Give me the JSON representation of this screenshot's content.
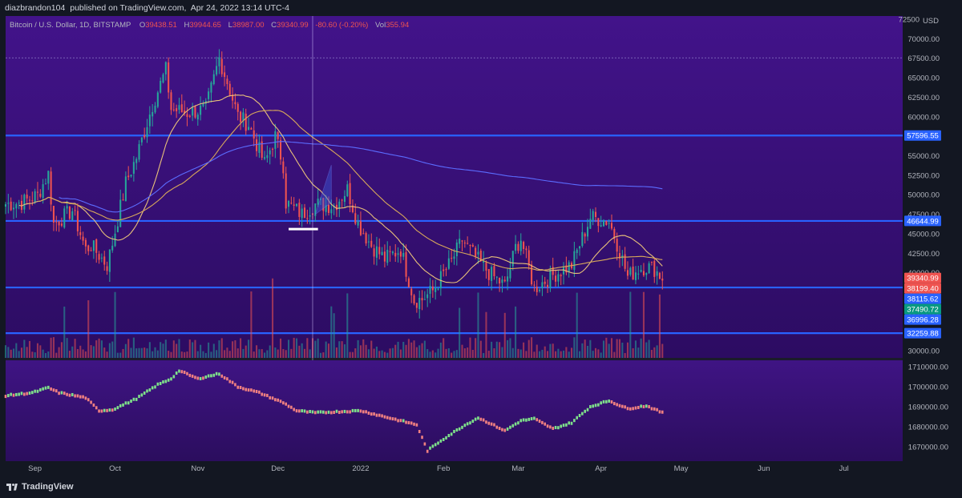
{
  "header": {
    "author": "diazbrandon104",
    "published_text": "published on TradingView.com,",
    "date": "Apr 24, 2022 13:14 UTC-4"
  },
  "symbol": {
    "name": "Bitcoin / U.S. Dollar, 1D, BITSTAMP",
    "open_label": "O",
    "open": "39438.51",
    "high_label": "H",
    "high": "39944.65",
    "low_label": "L",
    "low": "38987.00",
    "close_label": "C",
    "close": "39340.99",
    "change": "-80.60 (-0.20%)",
    "vol_label": "Vol",
    "vol": "355.94"
  },
  "currency": "USD",
  "footer": {
    "brand": "TradingView"
  },
  "colors": {
    "panel_bg": "#44178a",
    "panel_bg_dark": "#2b0d5e",
    "up": "#26a69a",
    "down": "#ef5350",
    "ma_fast": "#e8c07a",
    "ma_slow": "#2962ff",
    "hline": "#2962ff",
    "tag_blue": "#2962ff",
    "tag_red": "#ef5350",
    "tag_green": "#089981"
  },
  "chart_data": [
    {
      "type": "candlestick",
      "title": "Bitcoin / U.S. Dollar, 1D, BITSTAMP",
      "ylim": [
        29500,
        72500
      ],
      "y_ticks": [
        "70000.00",
        "67500.00",
        "65000.00",
        "62500.00",
        "60000.00",
        "57500.00",
        "55000.00",
        "52500.00",
        "50000.00",
        "47500.00",
        "45000.00",
        "42500.00",
        "40000.00",
        "37500.00",
        "35000.00",
        "32500.00",
        "30000.00"
      ],
      "top_tick": "72500",
      "x_ticks": [
        "Sep",
        "Oct",
        "Nov",
        "Dec",
        "2022",
        "Feb",
        "Mar",
        "Apr",
        "May",
        "Jun",
        "Jul"
      ],
      "x_tick_dates": [
        "2021-09-01",
        "2021-10-01",
        "2021-11-01",
        "2021-12-01",
        "2022-01-01",
        "2022-02-01",
        "2022-03-01",
        "2022-04-01",
        "2022-05-01",
        "2022-06-01",
        "2022-07-01"
      ],
      "x_range": [
        "2021-08-21",
        "2022-07-23"
      ],
      "close_anchors": [
        [
          "2021-08-21",
          48800
        ],
        [
          "2021-08-27",
          49000
        ],
        [
          "2021-09-02",
          50000
        ],
        [
          "2021-09-06",
          52700
        ],
        [
          "2021-09-08",
          46300
        ],
        [
          "2021-09-15",
          48000
        ],
        [
          "2021-09-20",
          43000
        ],
        [
          "2021-09-22",
          43500
        ],
        [
          "2021-09-28",
          41000
        ],
        [
          "2021-09-30",
          43800
        ],
        [
          "2021-10-05",
          51500
        ],
        [
          "2021-10-09",
          54800
        ],
        [
          "2021-10-15",
          61500
        ],
        [
          "2021-10-20",
          66000
        ],
        [
          "2021-10-22",
          61000
        ],
        [
          "2021-10-28",
          60500
        ],
        [
          "2021-11-04",
          61000
        ],
        [
          "2021-11-09",
          67500
        ],
        [
          "2021-11-12",
          64500
        ],
        [
          "2021-11-16",
          60100
        ],
        [
          "2021-11-20",
          59000
        ],
        [
          "2021-11-26",
          54000
        ],
        [
          "2021-11-30",
          57500
        ],
        [
          "2021-12-03",
          53800
        ],
        [
          "2021-12-04",
          49000
        ],
        [
          "2021-12-10",
          47500
        ],
        [
          "2021-12-15",
          48800
        ],
        [
          "2021-12-22",
          48600
        ],
        [
          "2021-12-27",
          50700
        ],
        [
          "2021-12-31",
          46300
        ],
        [
          "2022-01-05",
          43500
        ],
        [
          "2022-01-10",
          41800
        ],
        [
          "2022-01-16",
          43000
        ],
        [
          "2022-01-21",
          36500
        ],
        [
          "2022-01-24",
          36600
        ],
        [
          "2022-01-28",
          37700
        ],
        [
          "2022-02-04",
          41500
        ],
        [
          "2022-02-08",
          44200
        ],
        [
          "2022-02-13",
          42000
        ],
        [
          "2022-02-18",
          40000
        ],
        [
          "2022-02-24",
          38300
        ],
        [
          "2022-02-28",
          43200
        ],
        [
          "2022-03-02",
          44400
        ],
        [
          "2022-03-07",
          38000
        ],
        [
          "2022-03-14",
          39700
        ],
        [
          "2022-03-21",
          41000
        ],
        [
          "2022-03-28",
          47100
        ],
        [
          "2022-03-30",
          47000
        ],
        [
          "2022-04-04",
          46600
        ],
        [
          "2022-04-08",
          42800
        ],
        [
          "2022-04-11",
          39500
        ],
        [
          "2022-04-15",
          40500
        ],
        [
          "2022-04-18",
          40800
        ],
        [
          "2022-04-21",
          40500
        ],
        [
          "2022-04-24",
          39340.99
        ]
      ],
      "horizontal_lines": [
        67550,
        57596.55,
        46644.99,
        38115.62,
        32259.88
      ],
      "price_tags": [
        {
          "value": "57596.55",
          "price": 57596.55,
          "kind": "blue"
        },
        {
          "value": "46644.99",
          "price": 46644.99,
          "kind": "blue"
        },
        {
          "value": "39340.99",
          "price": 39340.99,
          "kind": "red"
        },
        {
          "value": "38199.40",
          "price": 38199.4,
          "kind": "red"
        },
        {
          "value": "38115.62",
          "price": 38115.62,
          "kind": "blue"
        },
        {
          "value": "37490.72",
          "price": 37490.72,
          "kind": "green"
        },
        {
          "value": "36996.28",
          "price": 36996.28,
          "kind": "blue"
        },
        {
          "value": "32259.88",
          "price": 32259.88,
          "kind": "blue"
        }
      ]
    },
    {
      "type": "line",
      "title": "",
      "ylim": [
        1664000,
        1712000
      ],
      "y_ticks": [
        "1710000.00",
        "1700000.00",
        "1690000.00",
        "1680000.00",
        "1670000.00"
      ],
      "anchors": [
        [
          "2021-08-21",
          1695500
        ],
        [
          "2021-08-31",
          1697000
        ],
        [
          "2021-09-06",
          1699500
        ],
        [
          "2021-09-10",
          1697000
        ],
        [
          "2021-09-20",
          1694500
        ],
        [
          "2021-09-25",
          1688000
        ],
        [
          "2021-09-30",
          1688500
        ],
        [
          "2021-10-09",
          1694000
        ],
        [
          "2021-10-17",
          1701000
        ],
        [
          "2021-10-22",
          1704000
        ],
        [
          "2021-10-25",
          1708000
        ],
        [
          "2021-11-01",
          1704000
        ],
        [
          "2021-11-09",
          1706500
        ],
        [
          "2021-11-16",
          1700000
        ],
        [
          "2021-11-24",
          1697000
        ],
        [
          "2021-12-03",
          1692000
        ],
        [
          "2021-12-08",
          1688000
        ],
        [
          "2021-12-15",
          1687000
        ],
        [
          "2022-01-01",
          1688000
        ],
        [
          "2022-01-10",
          1685000
        ],
        [
          "2022-01-22",
          1681000
        ],
        [
          "2022-01-26",
          1668000
        ],
        [
          "2022-01-31",
          1673000
        ],
        [
          "2022-02-08",
          1680000
        ],
        [
          "2022-02-14",
          1684500
        ],
        [
          "2022-02-18",
          1682000
        ],
        [
          "2022-02-24",
          1678000
        ],
        [
          "2022-03-02",
          1683000
        ],
        [
          "2022-03-07",
          1684000
        ],
        [
          "2022-03-14",
          1679000
        ],
        [
          "2022-03-21",
          1682000
        ],
        [
          "2022-03-28",
          1690000
        ],
        [
          "2022-04-04",
          1693000
        ],
        [
          "2022-04-11",
          1689000
        ],
        [
          "2022-04-18",
          1690500
        ],
        [
          "2022-04-24",
          1687000
        ]
      ]
    }
  ]
}
